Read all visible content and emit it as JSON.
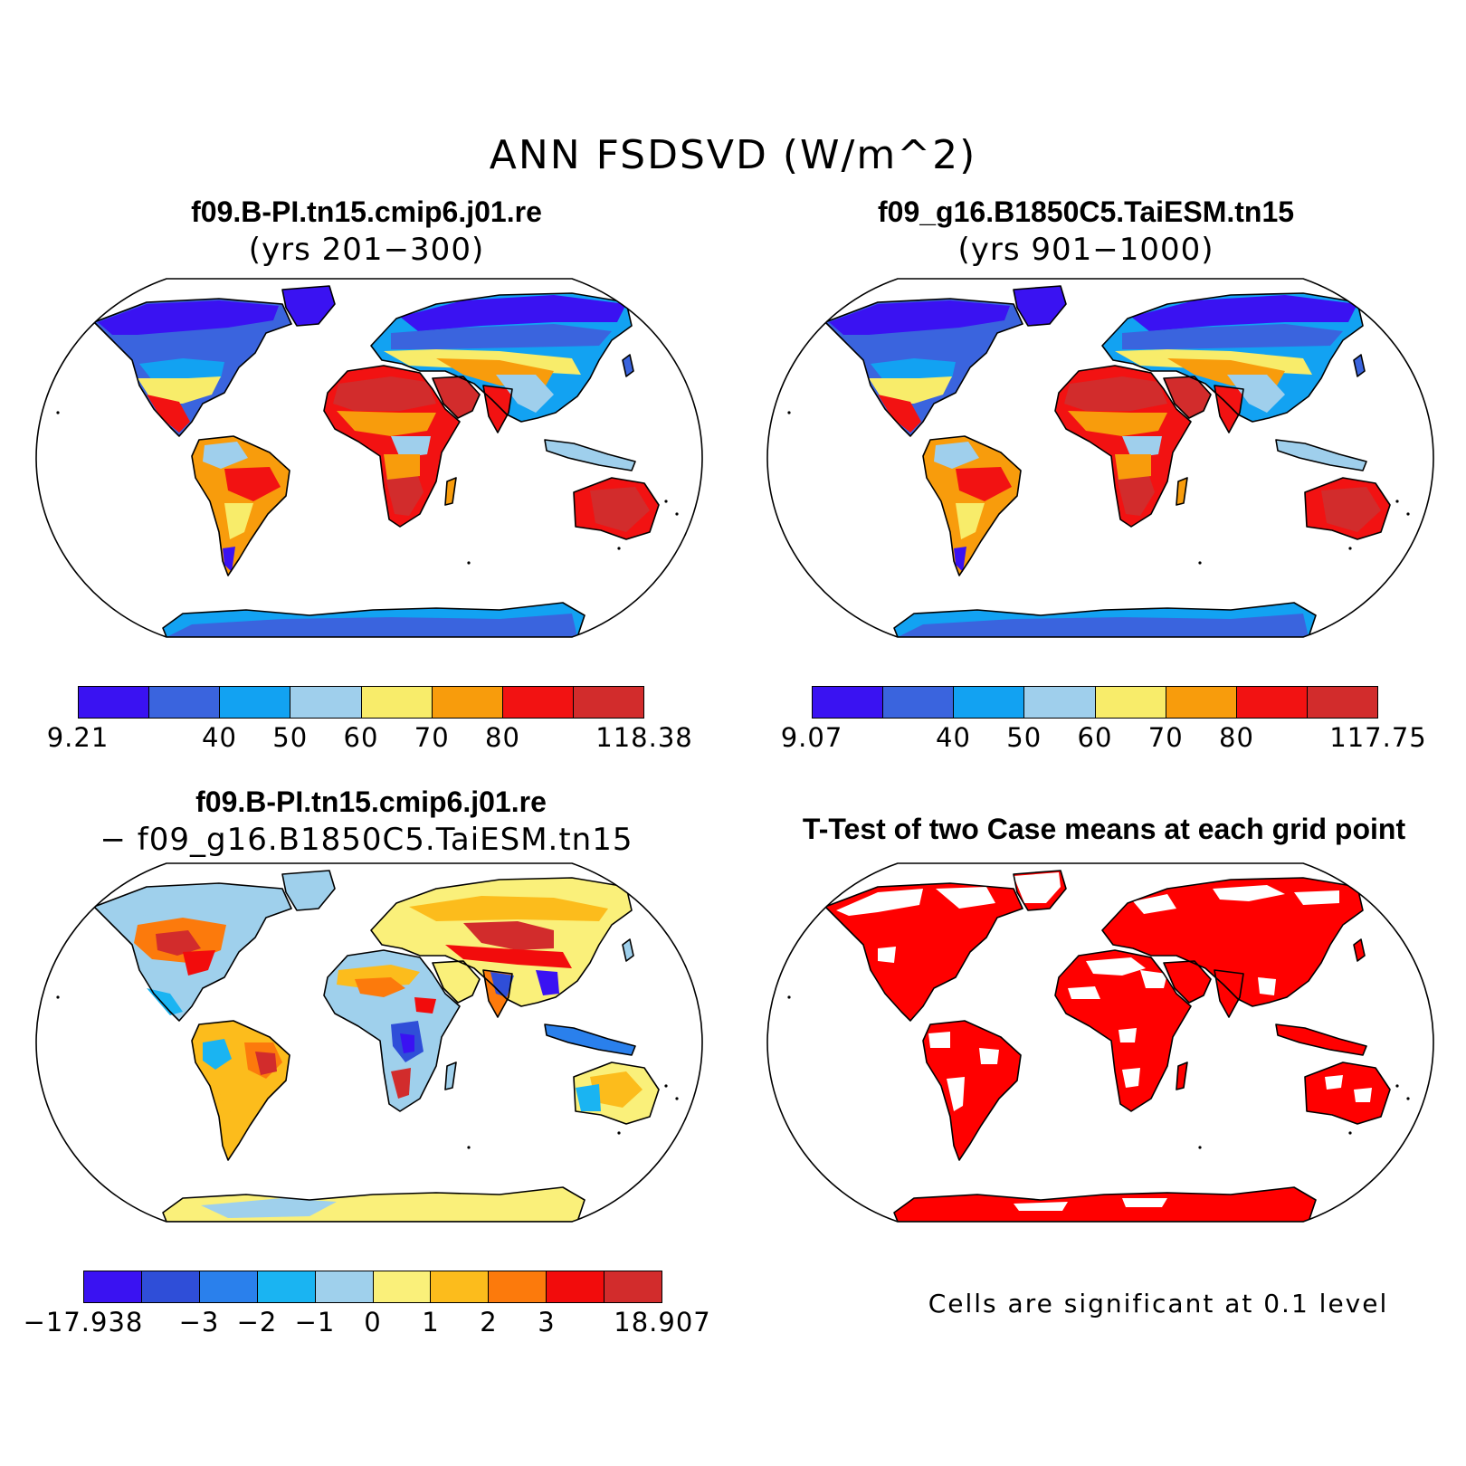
{
  "title": "ANN FSDSVD (W/m^2)",
  "panels": [
    {
      "title": "f09.B-PI.tn15.cmip6.j01.re",
      "subtitle": "(yrs 201−300)",
      "scheme": "abs"
    },
    {
      "title": "f09_g16.B1850C5.TaiESM.tn15",
      "subtitle": "(yrs 901−1000)",
      "scheme": "abs"
    },
    {
      "title": "f09.B-PI.tn15.cmip6.j01.re",
      "subtitle": "− f09_g16.B1850C5.TaiESM.tn15",
      "scheme": "diff"
    },
    {
      "title": "T-Test of two Case means at each grid point",
      "subtitle": "",
      "scheme": "ttest"
    }
  ],
  "colorbars": [
    {
      "colors": [
        "#3a12f2",
        "#3a64de",
        "#12a2f2",
        "#9fcfec",
        "#f8ec6a",
        "#f89c0c",
        "#f21212",
        "#d22c2c"
      ],
      "labels": [
        "9.21",
        "",
        "40",
        "50",
        "60",
        "70",
        "80",
        "",
        "118.38"
      ]
    },
    {
      "colors": [
        "#3a12f2",
        "#3a64de",
        "#12a2f2",
        "#9fcfec",
        "#f8ec6a",
        "#f89c0c",
        "#f21212",
        "#d22c2c"
      ],
      "labels": [
        "9.07",
        "",
        "40",
        "50",
        "60",
        "70",
        "80",
        "",
        "117.75"
      ]
    },
    {
      "colors": [
        "#3a12f2",
        "#2f4ed8",
        "#2a80ec",
        "#1ab4f2",
        "#9fd0ec",
        "#faf07a",
        "#fcbc1c",
        "#fc7a0c",
        "#f20c0c",
        "#d22c2c"
      ],
      "labels": [
        "−17.938",
        "",
        "−3",
        "−2",
        "−1",
        "0",
        "1",
        "2",
        "3",
        "",
        "18.907"
      ]
    }
  ],
  "significance_note": "Cells are significant at 0.1 level",
  "significance_color": "#ff0000"
}
